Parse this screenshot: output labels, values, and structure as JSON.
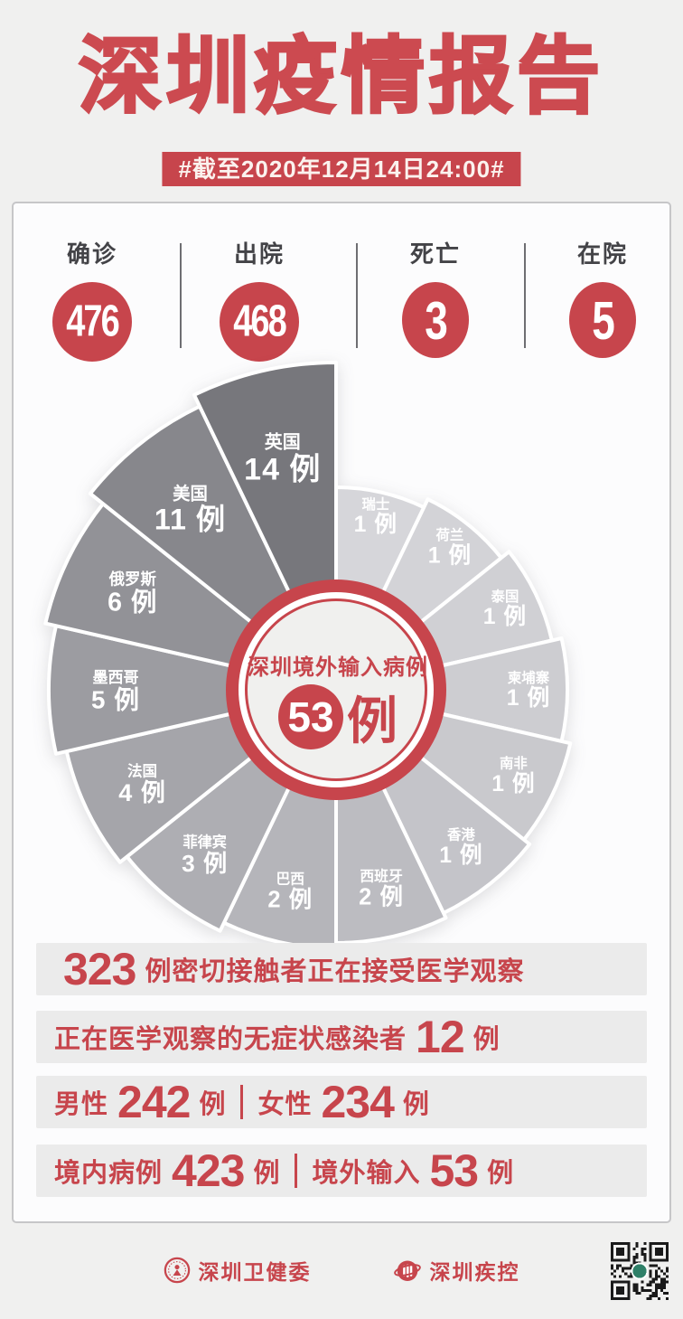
{
  "title": "深圳疫情报告",
  "date_banner": "#截至2020年12月14日24:00#",
  "colors": {
    "accent": "#c7454c",
    "page_bg": "#f0f0ef",
    "card_bg": "#fcfcfd",
    "card_border": "#c6c6c8",
    "bar_bg": "#ebebeb",
    "stat_label": "#434347",
    "stat_divider": "#6e6e72",
    "pie_center_face": "#f0f0ee",
    "slice_label": "#ffffff",
    "qr_logo": "#2f8068"
  },
  "summary_stats": [
    {
      "label": "确诊",
      "value": "476"
    },
    {
      "label": "出院",
      "value": "468"
    },
    {
      "label": "死亡",
      "value": "3"
    },
    {
      "label": "在院",
      "value": "5"
    }
  ],
  "chart_data": {
    "type": "pie",
    "variant": "nightingale-rose",
    "title": "深圳境外输入病例 53例",
    "center_label": "深圳境外输入病例",
    "center_value": "53",
    "center_unit": "例",
    "unit": "例",
    "order": "clockwise-from-top",
    "legend_position": "in-slice",
    "series": [
      {
        "name": "瑞士",
        "value": 1,
        "radius": 224,
        "color": "#d6d6da"
      },
      {
        "name": "荷兰",
        "value": 1,
        "radius": 234,
        "color": "#d3d3d7"
      },
      {
        "name": "泰国",
        "value": 1,
        "radius": 245,
        "color": "#d0d0d4"
      },
      {
        "name": "柬埔寨",
        "value": 1,
        "radius": 256,
        "color": "#cdcdd1"
      },
      {
        "name": "南非",
        "value": 1,
        "radius": 266,
        "color": "#c9c9cd"
      },
      {
        "name": "香港",
        "value": 1,
        "radius": 274,
        "color": "#c4c4c9"
      },
      {
        "name": "西班牙",
        "value": 2,
        "radius": 280,
        "color": "#bcbcc1"
      },
      {
        "name": "巴西",
        "value": 2,
        "radius": 286,
        "color": "#b5b5ba"
      },
      {
        "name": "菲律宾",
        "value": 3,
        "radius": 296,
        "color": "#aeaeb3"
      },
      {
        "name": "法国",
        "value": 4,
        "radius": 306,
        "color": "#a5a5aa"
      },
      {
        "name": "墨西哥",
        "value": 5,
        "radius": 318,
        "color": "#9c9ca1"
      },
      {
        "name": "俄罗斯",
        "value": 6,
        "radius": 330,
        "color": "#929297"
      },
      {
        "name": "美国",
        "value": 11,
        "radius": 348,
        "color": "#87878c"
      },
      {
        "name": "英国",
        "value": 14,
        "radius": 362,
        "color": "#77777c"
      }
    ]
  },
  "bars": [
    {
      "value": "323",
      "text": "例密切接触者正在接受医学观察"
    },
    {
      "prefix": "正在医学观察的无症状感染者",
      "value": "12",
      "unit": "例"
    },
    {
      "left": {
        "label": "男性",
        "value": "242",
        "unit": "例"
      },
      "right": {
        "label": "女性",
        "value": "234",
        "unit": "例"
      }
    },
    {
      "left": {
        "label": "境内病例",
        "value": "423",
        "unit": "例"
      },
      "right": {
        "label": "境外输入",
        "value": "53",
        "unit": "例"
      }
    }
  ],
  "footer": {
    "org1": "深圳卫健委",
    "org2": "深圳疾控"
  }
}
